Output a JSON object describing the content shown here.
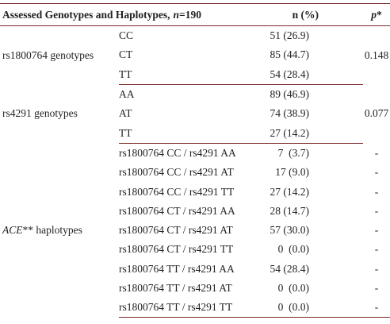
{
  "header": {
    "title": [
      {
        "text": "Assessed Genotypes and Haplotypes,"
      },
      {
        "text": "n",
        "style": "italic"
      },
      {
        "text": "=190"
      }
    ],
    "n_percent": "n (%)",
    "p": [
      {
        "text": "p",
        "style": "italic"
      },
      {
        "text": "*"
      }
    ]
  },
  "groups": [
    {
      "label": [
        {
          "text": "rs1800764 genotypes"
        }
      ],
      "p": "0.148",
      "rows": [
        {
          "genotype": "CC",
          "n_percent": "51 (26.9)"
        },
        {
          "genotype": "CT",
          "n_percent": "85 (44.7)"
        },
        {
          "genotype": "TT",
          "n_percent": "54 (28.4)"
        }
      ]
    },
    {
      "label": [
        {
          "text": "rs4291 genotypes"
        }
      ],
      "p": "0.077",
      "rows": [
        {
          "genotype": "AA",
          "n_percent": "89 (46.9)"
        },
        {
          "genotype": "AT",
          "n_percent": "74 (38.9)"
        },
        {
          "genotype": "TT",
          "n_percent": "27 (14.2)"
        }
      ]
    },
    {
      "label": [
        {
          "text": "ACE",
          "style": "italic"
        },
        {
          "text": "** haplotypes"
        }
      ],
      "rows": [
        {
          "genotype": "rs1800764 CC / rs4291 AA",
          "n_percent": "7  (3.7)",
          "p": "-"
        },
        {
          "genotype": "rs1800764 CC / rs4291 AT",
          "n_percent": "17 (9.0)",
          "p": "-"
        },
        {
          "genotype": "rs1800764 CC / rs4291 TT",
          "n_percent": "27 (14.2)",
          "p": "-"
        },
        {
          "genotype": "rs1800764 CT / rs4291 AA",
          "n_percent": "28 (14.7)",
          "p": "-"
        },
        {
          "genotype": "rs1800764 CT / rs4291 AT",
          "n_percent": "57 (30.0)",
          "p": "-"
        },
        {
          "genotype": "rs1800764 CT / rs4291 TT",
          "n_percent": "0  (0.0)",
          "p": "-"
        },
        {
          "genotype": "rs1800764 TT / rs4291 AA",
          "n_percent": "54 (28.4)",
          "p": "-"
        },
        {
          "genotype": "rs1800764 TT / rs4291 AT",
          "n_percent": "0  (0.0)",
          "p": "-"
        },
        {
          "genotype": "rs1800764 TT / rs4291 TT",
          "n_percent": "0  (0.0)",
          "p": "-"
        }
      ]
    }
  ]
}
